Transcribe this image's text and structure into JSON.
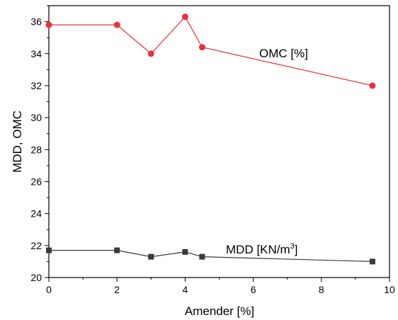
{
  "chart_data": {
    "type": "line",
    "xlabel": "Amender [%]",
    "ylabel": "MDD, OMC",
    "xlim": [
      0,
      10
    ],
    "ylim": [
      20,
      37
    ],
    "x_ticks": [
      "0",
      "2",
      "4",
      "6",
      "8",
      "10"
    ],
    "y_ticks": [
      "20",
      "22",
      "24",
      "26",
      "28",
      "30",
      "32",
      "34",
      "36"
    ],
    "grid": false,
    "series": [
      {
        "name": "OMC [%]",
        "color": "#e8323a",
        "marker": "circle",
        "x": [
          0,
          2,
          3,
          4,
          4.5,
          9.5
        ],
        "y": [
          35.8,
          35.8,
          34.0,
          36.3,
          34.4,
          32.0
        ]
      },
      {
        "name": "MDD [KN/m",
        "name_superscript": "3",
        "name_suffix": "]",
        "color": "#3a3a3a",
        "marker": "square",
        "x": [
          0,
          2,
          3,
          4,
          4.5,
          9.5
        ],
        "y": [
          21.7,
          21.7,
          21.3,
          21.6,
          21.3,
          21.0
        ]
      }
    ]
  }
}
